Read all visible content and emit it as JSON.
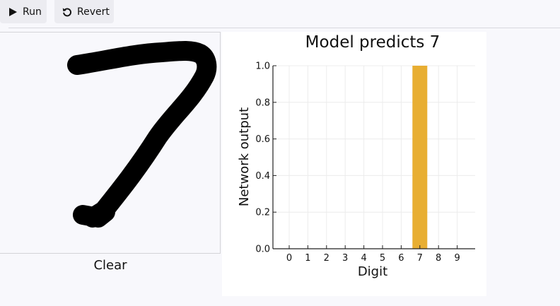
{
  "toolbar": {
    "run_label": "Run",
    "run_icon": "play-icon",
    "revert_label": "Revert",
    "revert_icon": "undo-icon"
  },
  "drawing": {
    "digit_shown": "7",
    "clear_label": "Clear"
  },
  "chart_data": {
    "type": "bar",
    "title": "Model predicts 7",
    "xlabel": "Digit",
    "ylabel": "Network output",
    "categories": [
      "0",
      "1",
      "2",
      "3",
      "4",
      "5",
      "6",
      "7",
      "8",
      "9"
    ],
    "values": [
      0,
      0,
      0,
      0,
      0,
      0,
      0,
      1.0,
      0,
      0
    ],
    "ylim": [
      0,
      1.0
    ],
    "yticks": [
      "0.0",
      "0.2",
      "0.4",
      "0.6",
      "0.8",
      "1.0"
    ],
    "bar_color": "#e8ae32",
    "grid": true
  }
}
